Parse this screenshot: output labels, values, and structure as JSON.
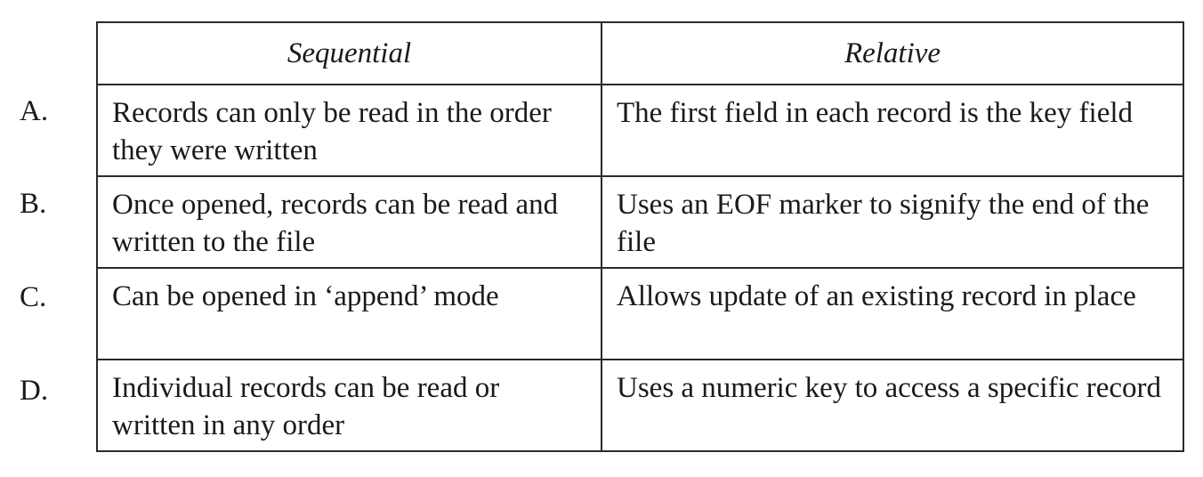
{
  "table": {
    "headers": [
      "Sequential",
      "Relative"
    ],
    "rows": [
      {
        "letter": "A.",
        "sequential": "Records can only be read in the order they were written",
        "relative": "The first field in each record is the key field"
      },
      {
        "letter": "B.",
        "sequential": "Once opened, records can be read and written to the file",
        "relative": "Uses an EOF marker to signify the end of the file"
      },
      {
        "letter": "C.",
        "sequential": "Can be opened in ‘append’ mode",
        "relative": "Allows update of an existing record in place"
      },
      {
        "letter": "D.",
        "sequential": "Individual records can be read or written in any order",
        "relative": "Uses a numeric key to access a specific record"
      }
    ]
  }
}
